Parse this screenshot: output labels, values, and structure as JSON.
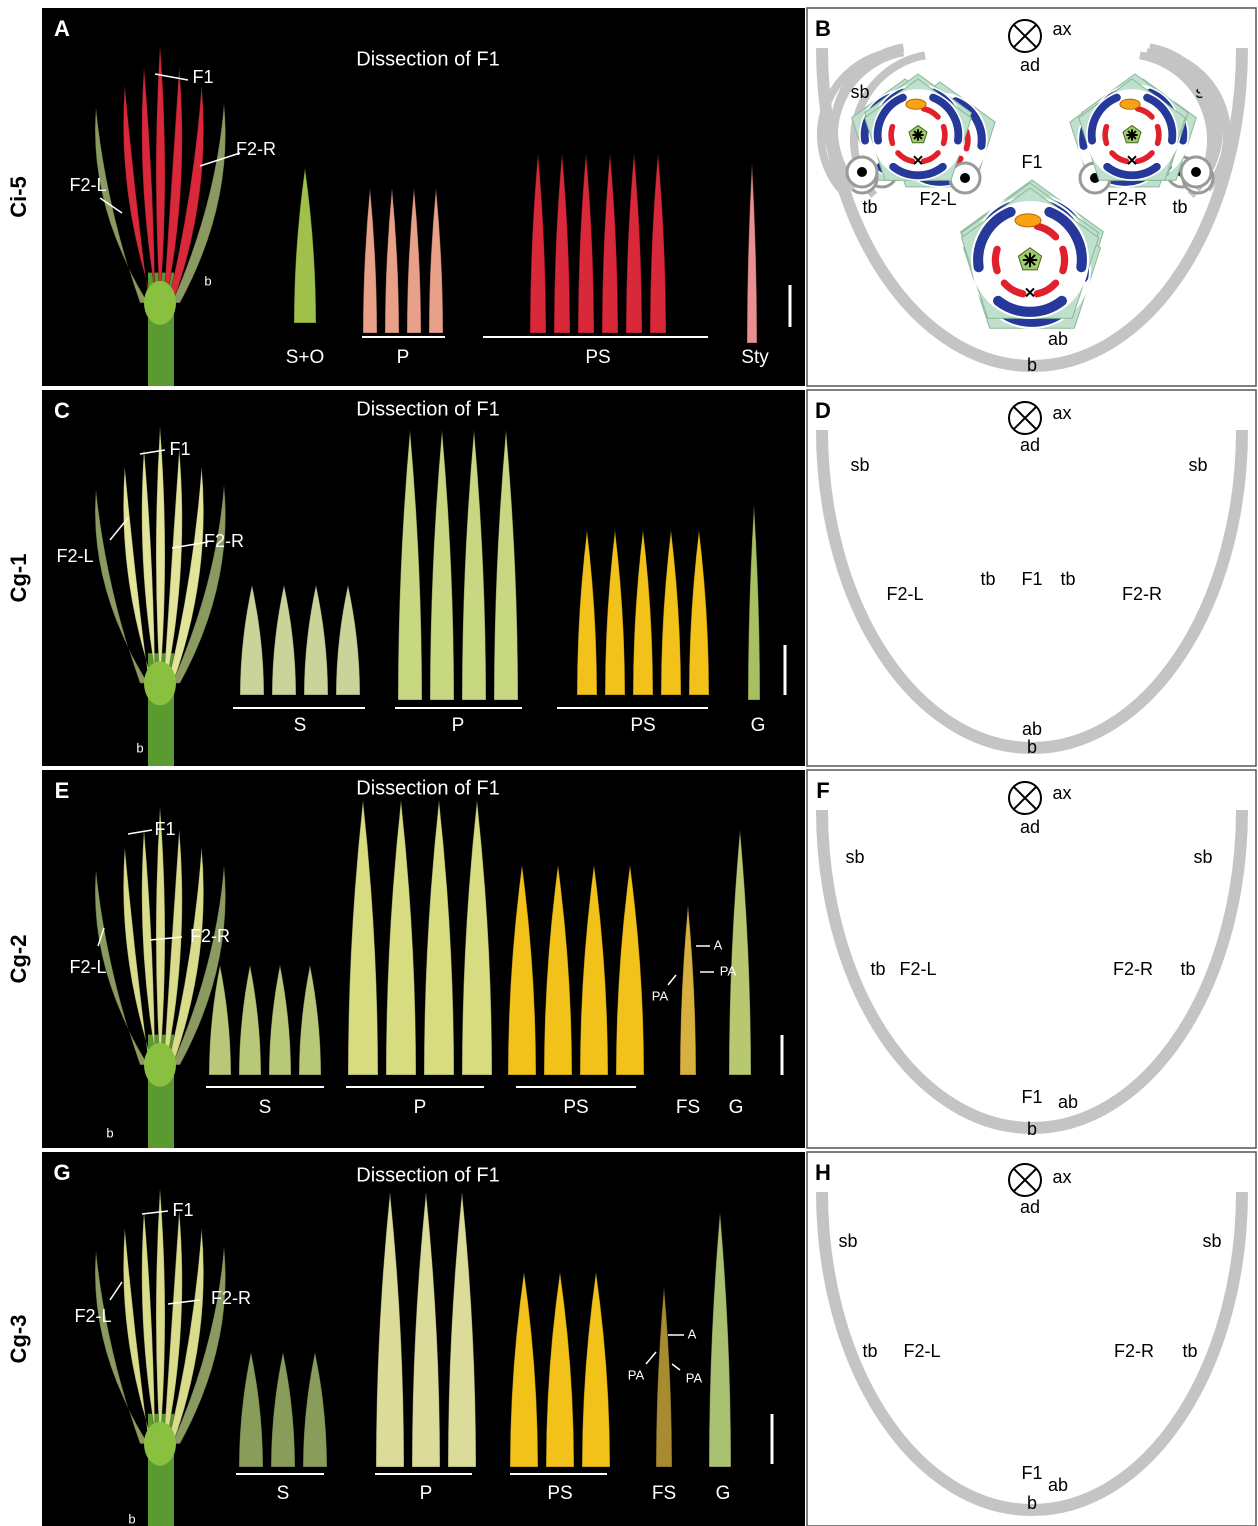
{
  "rows": [
    {
      "label": "Ci-5",
      "photo": {
        "letter": "A",
        "title": "Dissection of F1",
        "callouts": [
          "F1",
          "F2-R",
          "F2-L",
          "b"
        ],
        "groups": [
          "S+O",
          "P",
          "PS",
          "Sty"
        ]
      },
      "diagram": {
        "letter": "B",
        "labels": [
          "ax",
          "ad",
          "sb",
          "sb",
          "tb",
          "tb",
          "F2-L",
          "F2-R",
          "F1",
          "ab",
          "b"
        ]
      }
    },
    {
      "label": "Cg-1",
      "photo": {
        "letter": "C",
        "title": "Dissection of F1",
        "callouts": [
          "F1",
          "F2-L",
          "F2-R",
          "b"
        ],
        "groups": [
          "S",
          "P",
          "PS",
          "G"
        ]
      },
      "diagram": {
        "letter": "D",
        "labels": [
          "ax",
          "ad",
          "sb",
          "sb",
          "tb",
          "tb",
          "F2-L",
          "F2-R",
          "F1",
          "ab",
          "b"
        ]
      }
    },
    {
      "label": "Cg-2",
      "photo": {
        "letter": "E",
        "title": "Dissection of F1",
        "callouts": [
          "F1",
          "F2-R",
          "F2-L",
          "b",
          "A",
          "PA",
          "PA"
        ],
        "groups": [
          "S",
          "P",
          "PS",
          "FS",
          "G"
        ]
      },
      "diagram": {
        "letter": "F",
        "labels": [
          "ax",
          "ad",
          "sb",
          "sb",
          "tb",
          "tb",
          "F2-L",
          "F2-R",
          "F1",
          "ab",
          "b"
        ]
      }
    },
    {
      "label": "Cg-3",
      "photo": {
        "letter": "G",
        "title": "Dissection of F1",
        "callouts": [
          "F1",
          "F2-L",
          "F2-R",
          "b",
          "A",
          "PA",
          "PA"
        ],
        "groups": [
          "S",
          "P",
          "PS",
          "FS",
          "G"
        ]
      },
      "diagram": {
        "letter": "H",
        "labels": [
          "ax",
          "ad",
          "sb",
          "sb",
          "tb",
          "tb",
          "F2-L",
          "F2-R",
          "F1",
          "ab",
          "b"
        ]
      }
    }
  ]
}
